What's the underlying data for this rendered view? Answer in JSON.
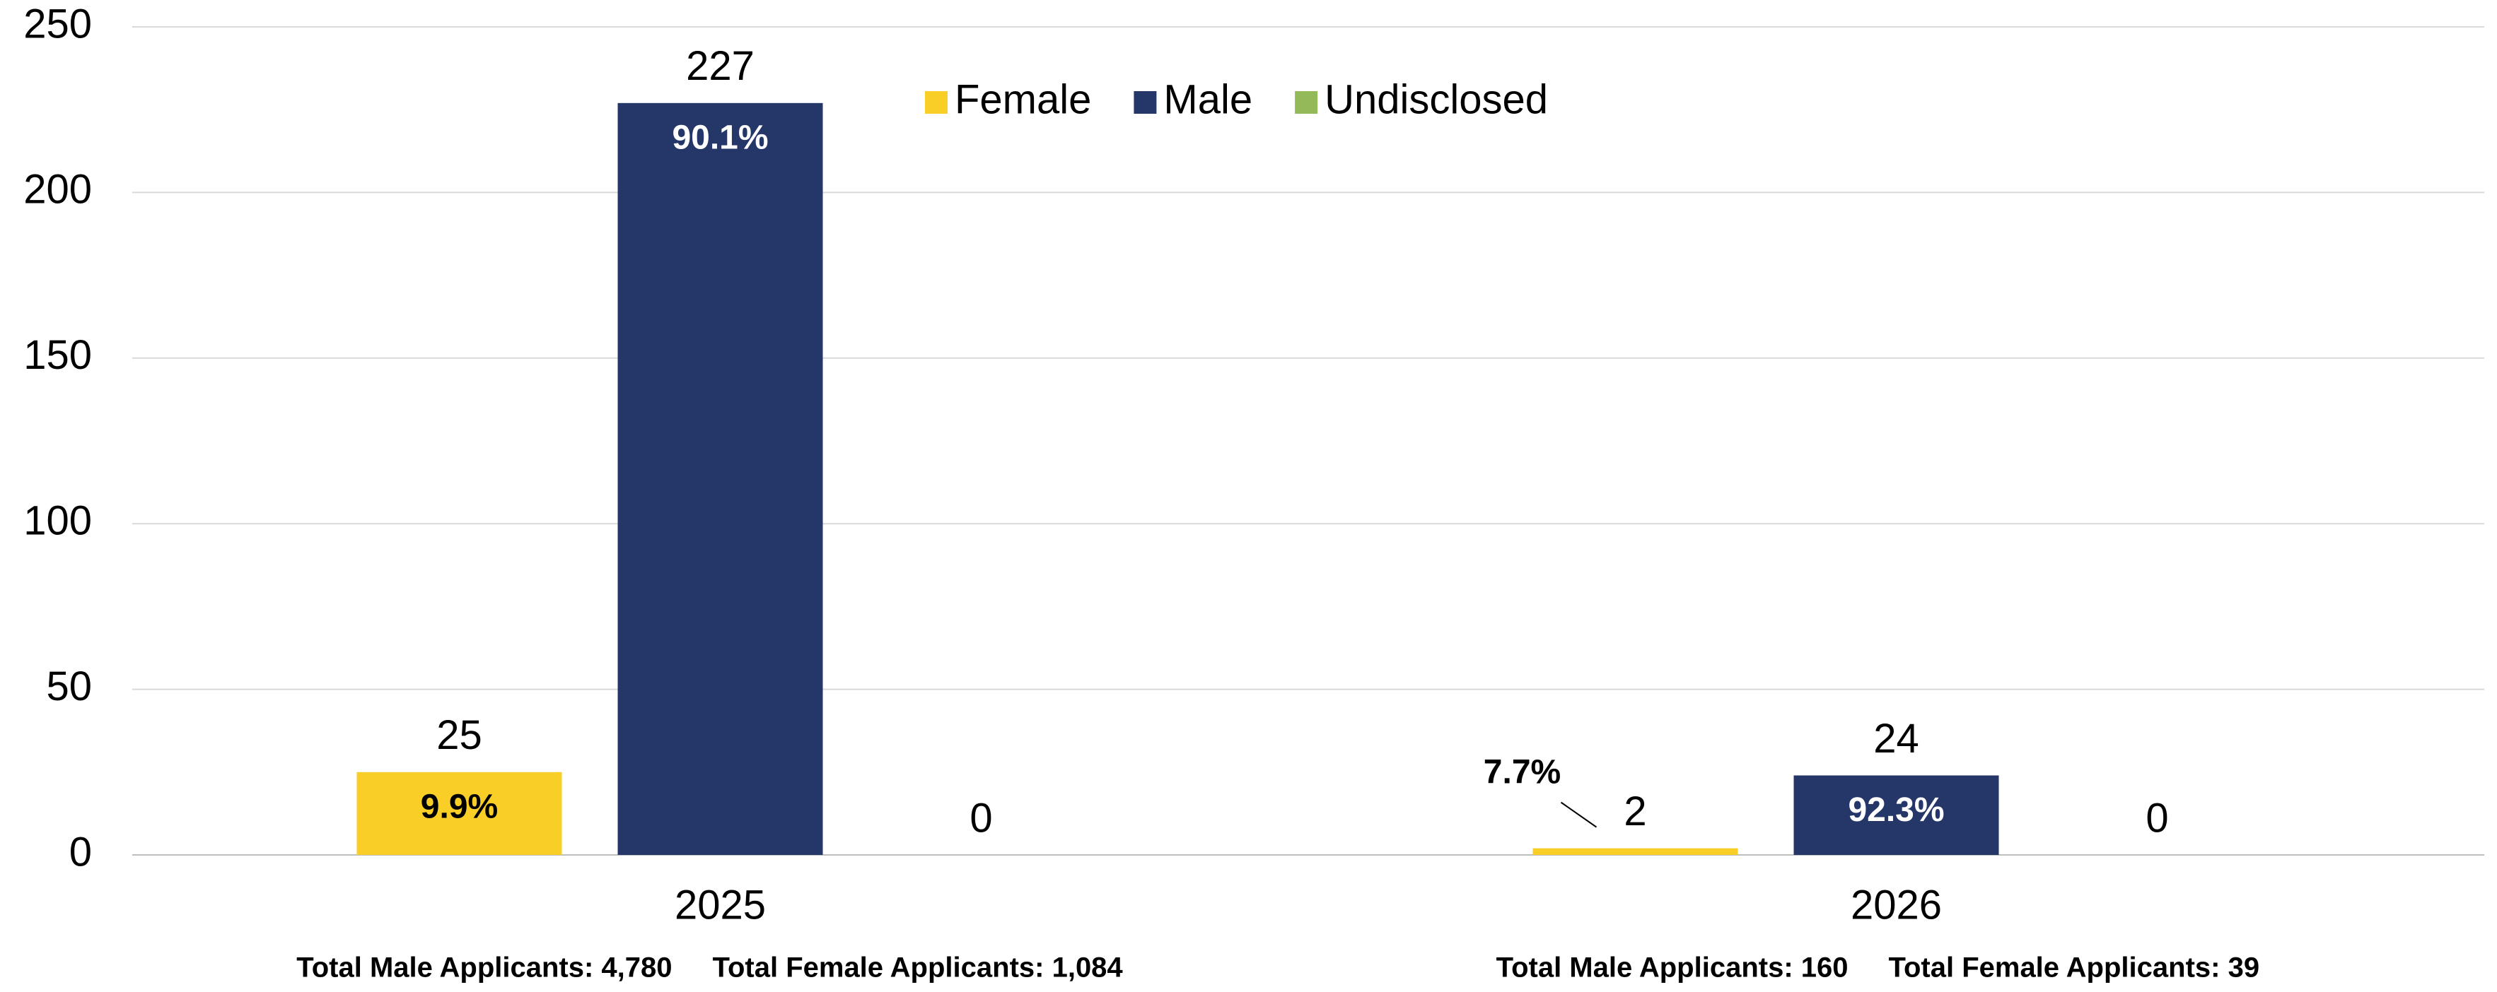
{
  "chart_data": {
    "type": "bar",
    "categories": [
      "2025",
      "2026"
    ],
    "series": [
      {
        "name": "Female",
        "color": "#f9ce26",
        "values": [
          25,
          2
        ],
        "percent_labels": [
          "9.9%",
          "7.7%"
        ]
      },
      {
        "name": "Male",
        "color": "#253668",
        "values": [
          227,
          24
        ],
        "percent_labels": [
          "90.1%",
          "92.3%"
        ]
      },
      {
        "name": "Undisclosed",
        "color": "#93b959",
        "values": [
          0,
          0
        ]
      }
    ],
    "annotations": [
      [
        "Total Male Applicants: 4,780",
        "Total Female Applicants: 1,084"
      ],
      [
        "Total Male Applicants: 160",
        "Total Female Applicants:  39"
      ]
    ],
    "ylim": [
      0,
      250
    ],
    "yticks": [
      0,
      50,
      100,
      150,
      200,
      250
    ],
    "grid": true,
    "legend": "top"
  }
}
